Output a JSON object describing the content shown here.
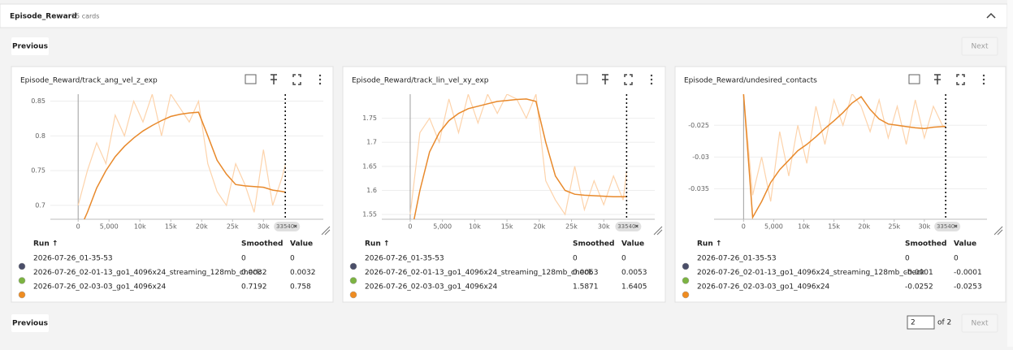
{
  "header": {
    "title": "Episode_Reward",
    "count": "15 cards"
  },
  "buttons": {
    "previous": "Previous",
    "next": "Next"
  },
  "pagination": {
    "page": "2",
    "of": "of 2"
  },
  "cards": [
    {
      "title": "Episode_Reward/track_ang_vel_z_exp",
      "chart_data": {
        "type": "line",
        "step_marker": 33540,
        "x": [
          0,
          1500,
          3000,
          4500,
          6000,
          7500,
          9000,
          10500,
          12000,
          13500,
          15000,
          16500,
          18000,
          19500,
          21000,
          22500,
          24000,
          25500,
          27000,
          28500,
          30000,
          31500,
          33000,
          33540
        ],
        "series": [
          {
            "color": "#fdd3ab",
            "values": [
              0.7,
              0.75,
              0.79,
              0.76,
              0.83,
              0.8,
              0.85,
              0.82,
              0.86,
              0.8,
              0.86,
              0.84,
              0.82,
              0.85,
              0.76,
              0.72,
              0.7,
              0.76,
              0.73,
              0.69,
              0.78,
              0.7,
              0.74,
              0.758
            ]
          },
          {
            "color": "#e8892b",
            "values": [
              0.66,
              0.69,
              0.725,
              0.75,
              0.77,
              0.785,
              0.797,
              0.807,
              0.815,
              0.822,
              0.828,
              0.831,
              0.833,
              0.834,
              0.8,
              0.765,
              0.745,
              0.73,
              0.728,
              0.727,
              0.726,
              0.722,
              0.72,
              0.719
            ]
          }
        ],
        "xlim": [
          -4500,
          39700
        ],
        "ylim": [
          0.68,
          0.86
        ],
        "xticks": [
          0,
          {
            "value": 5000,
            "label": "5,000"
          },
          {
            "value": 10000,
            "label": "10k"
          },
          {
            "value": 15000,
            "label": "15k"
          },
          {
            "value": 20000,
            "label": "20k"
          },
          {
            "value": 25000,
            "label": "25k"
          },
          {
            "value": 30000,
            "label": "30k"
          }
        ],
        "yticks": [
          0.7,
          0.75,
          0.8,
          0.85
        ]
      },
      "table": {
        "headers": [
          "Run ↑",
          "Smoothed",
          "Value"
        ],
        "rows": [
          {
            "color": "#4a4e69",
            "cells": [
              "2026-07-26_01-35-53",
              "0",
              "0"
            ]
          },
          {
            "color": "#7cb342",
            "cells": [
              "2026-07-26_02-01-13_go1_4096x24_streaming_128mb_check",
              "0.0032",
              "0.0032"
            ]
          },
          {
            "color": "#ef8c21",
            "cells": [
              "2026-07-26_02-03-03_go1_4096x24",
              "0.7192",
              "0.758"
            ]
          }
        ]
      }
    },
    {
      "title": "Episode_Reward/track_lin_vel_xy_exp",
      "chart_data": {
        "type": "line",
        "step_marker": 33540,
        "x": [
          0,
          1500,
          3000,
          4500,
          6000,
          7500,
          9000,
          10500,
          12000,
          13500,
          15000,
          16500,
          18000,
          19500,
          21000,
          22500,
          24000,
          25500,
          27000,
          28500,
          30000,
          31500,
          33000,
          33540
        ],
        "series": [
          {
            "color": "#fdd3ab",
            "values": [
              1.55,
              1.72,
              1.75,
              1.7,
              1.79,
              1.72,
              1.8,
              1.74,
              1.8,
              1.76,
              1.8,
              1.79,
              1.75,
              1.8,
              1.62,
              1.58,
              1.55,
              1.65,
              1.56,
              1.62,
              1.57,
              1.63,
              1.58,
              1.6405
            ]
          },
          {
            "color": "#e8892b",
            "values": [
              1.5,
              1.6,
              1.68,
              1.72,
              1.745,
              1.76,
              1.77,
              1.775,
              1.78,
              1.785,
              1.787,
              1.789,
              1.79,
              1.785,
              1.7,
              1.63,
              1.6,
              1.592,
              1.59,
              1.589,
              1.588,
              1.587,
              1.587,
              1.5871
            ]
          }
        ],
        "xlim": [
          -4400,
          37900
        ],
        "ylim": [
          1.54,
          1.8
        ],
        "xticks": [
          0,
          {
            "value": 5000,
            "label": "5,000"
          },
          {
            "value": 10000,
            "label": "10k"
          },
          {
            "value": 15000,
            "label": "15k"
          },
          {
            "value": 20000,
            "label": "20k"
          },
          {
            "value": 25000,
            "label": "25k"
          },
          {
            "value": 30000,
            "label": "30k"
          }
        ],
        "yticks": [
          1.55,
          1.6,
          1.65,
          1.7,
          1.75
        ]
      },
      "table": {
        "headers": [
          "Run ↑",
          "Smoothed",
          "Value"
        ],
        "rows": [
          {
            "color": "#4a4e69",
            "cells": [
              "2026-07-26_01-35-53",
              "0",
              "0"
            ]
          },
          {
            "color": "#7cb342",
            "cells": [
              "2026-07-26_02-01-13_go1_4096x24_streaming_128mb_check",
              "0.0053",
              "0.0053"
            ]
          },
          {
            "color": "#ef8c21",
            "cells": [
              "2026-07-26_02-03-03_go1_4096x24",
              "1.5871",
              "1.6405"
            ]
          }
        ]
      }
    },
    {
      "title": "Episode_Reward/undesired_contacts",
      "chart_data": {
        "type": "line",
        "step_marker": 33540,
        "x": [
          0,
          1500,
          3000,
          4500,
          6000,
          7500,
          9000,
          10500,
          12000,
          13500,
          15000,
          16500,
          18000,
          19500,
          21000,
          22500,
          24000,
          25500,
          27000,
          28500,
          30000,
          31500,
          33000,
          33540
        ],
        "series": [
          {
            "color": "#fdd3ab",
            "values": [
              -0.02,
              -0.036,
              -0.03,
              -0.037,
              -0.026,
              -0.033,
              -0.025,
              -0.031,
              -0.022,
              -0.028,
              -0.021,
              -0.025,
              -0.02,
              -0.022,
              -0.026,
              -0.021,
              -0.027,
              -0.022,
              -0.028,
              -0.021,
              -0.027,
              -0.022,
              -0.025,
              -0.0253
            ]
          },
          {
            "color": "#e8892b",
            "values": [
              -0.02,
              -0.0395,
              -0.037,
              -0.034,
              -0.032,
              -0.0305,
              -0.029,
              -0.028,
              -0.0268,
              -0.0255,
              -0.0243,
              -0.023,
              -0.0215,
              -0.0205,
              -0.0225,
              -0.024,
              -0.0248,
              -0.025,
              -0.0252,
              -0.0254,
              -0.0255,
              -0.0253,
              -0.0252,
              -0.0252
            ]
          }
        ],
        "xlim": [
          -4900,
          40400
        ],
        "ylim": [
          -0.0398,
          -0.0201
        ],
        "xticks": [
          0,
          {
            "value": 5000,
            "label": "5,000"
          },
          {
            "value": 10000,
            "label": "10k"
          },
          {
            "value": 15000,
            "label": "15k"
          },
          {
            "value": 20000,
            "label": "20k"
          },
          {
            "value": 25000,
            "label": "25k"
          },
          {
            "value": 30000,
            "label": "30k"
          }
        ],
        "yticks": [
          -0.035,
          -0.03,
          -0.025
        ]
      },
      "table": {
        "headers": [
          "Run ↑",
          "Smoothed",
          "Value"
        ],
        "rows": [
          {
            "color": "#4a4e69",
            "cells": [
              "2026-07-26_01-35-53",
              "0",
              "0"
            ]
          },
          {
            "color": "#7cb342",
            "cells": [
              "2026-07-26_02-01-13_go1_4096x24_streaming_128mb_check",
              "-0.0001",
              "-0.0001"
            ]
          },
          {
            "color": "#ef8c21",
            "cells": [
              "2026-07-26_02-03-03_go1_4096x24",
              "-0.0252",
              "-0.0253"
            ]
          }
        ]
      }
    }
  ]
}
